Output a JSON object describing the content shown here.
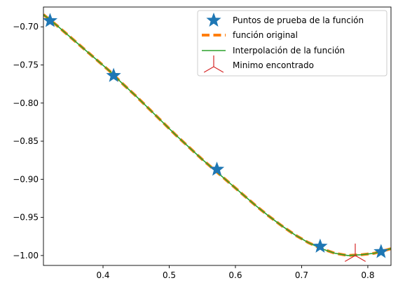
{
  "chart_data": {
    "type": "line",
    "title": "",
    "xlabel": "",
    "ylabel": "",
    "xlim": [
      0.31,
      0.835
    ],
    "ylim": [
      -1.013,
      -0.674
    ],
    "xticks": [
      0.4,
      0.5,
      0.6,
      0.7,
      0.8
    ],
    "xtick_labels": [
      "0.4",
      "0.5",
      "0.6",
      "0.7",
      "0.8"
    ],
    "yticks": [
      -0.7,
      -0.75,
      -0.8,
      -0.85,
      -0.9,
      -0.95,
      -1.0
    ],
    "ytick_labels": [
      "−0.70",
      "−0.75",
      "−0.80",
      "−0.85",
      "−0.90",
      "−0.95",
      "−1.00"
    ],
    "grid": false,
    "legend_position": "top-right",
    "curve_x": [
      0.31,
      0.33,
      0.35,
      0.37,
      0.39,
      0.41,
      0.43,
      0.45,
      0.47,
      0.49,
      0.51,
      0.53,
      0.55,
      0.57,
      0.59,
      0.61,
      0.63,
      0.65,
      0.67,
      0.69,
      0.71,
      0.73,
      0.75,
      0.77,
      0.79,
      0.81,
      0.835
    ],
    "curve_y": [
      -0.684,
      -0.698,
      -0.713,
      -0.728,
      -0.743,
      -0.758,
      -0.775,
      -0.791,
      -0.808,
      -0.825,
      -0.842,
      -0.858,
      -0.874,
      -0.889,
      -0.904,
      -0.919,
      -0.934,
      -0.948,
      -0.961,
      -0.973,
      -0.983,
      -0.991,
      -0.997,
      -1.0,
      -0.999,
      -0.997,
      -0.991
    ],
    "series": [
      {
        "name": "Puntos de prueba de la función",
        "kind": "markers",
        "marker": "star",
        "color": "#1f77b4",
        "x": [
          0.32,
          0.416,
          0.572,
          0.728,
          0.82
        ],
        "y": [
          -0.692,
          -0.764,
          -0.887,
          -0.988,
          -0.995
        ]
      },
      {
        "name": "función original",
        "kind": "line",
        "style": "dashed",
        "color": "#ff7f0e"
      },
      {
        "name": "Interpolación de la función",
        "kind": "line",
        "style": "solid",
        "color": "#2ca02c"
      },
      {
        "name": "Minimo encontrado",
        "kind": "markers",
        "marker": "tri",
        "color": "#d62728",
        "x": [
          0.781
        ],
        "y": [
          -1.0
        ]
      }
    ]
  }
}
